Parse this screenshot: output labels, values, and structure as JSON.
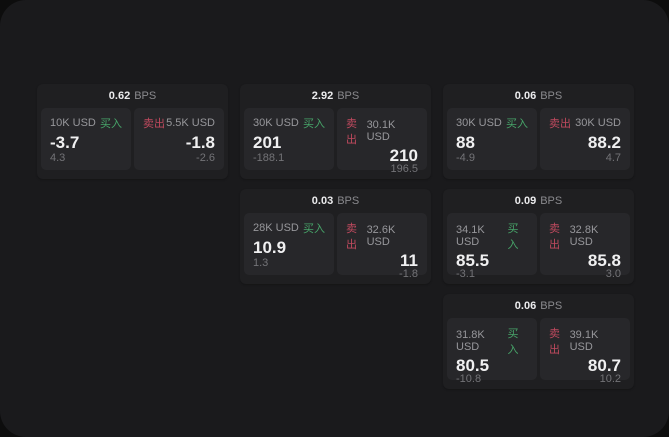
{
  "page": {
    "bps_unit": "BPS",
    "buy_label": "买入",
    "sell_label": "卖出",
    "colors": {
      "buy_green": "#47a469",
      "sell_red": "#c04a5e",
      "panel_bg": "#1a1a1c",
      "card_bg": "#1f1f21",
      "tile_bg": "#27272a",
      "outer_bg": "#0d0d0d"
    }
  },
  "cards": [
    {
      "row": 1,
      "col": 1,
      "bps": "0.62",
      "buy": {
        "amount": "10K USD",
        "value": "-3.7",
        "delta": "4.3"
      },
      "sell": {
        "amount": "5.5K USD",
        "value": "-1.8",
        "delta": "-2.6"
      }
    },
    {
      "row": 1,
      "col": 2,
      "bps": "2.92",
      "buy": {
        "amount": "30K USD",
        "value": "201",
        "delta": "-188.1"
      },
      "sell": {
        "amount": "30.1K USD",
        "value": "210",
        "delta": "196.5"
      }
    },
    {
      "row": 1,
      "col": 3,
      "bps": "0.06",
      "buy": {
        "amount": "30K USD",
        "value": "88",
        "delta": "-4.9"
      },
      "sell": {
        "amount": "30K USD",
        "value": "88.2",
        "delta": "4.7"
      }
    },
    {
      "row": 2,
      "col": 2,
      "bps": "0.03",
      "buy": {
        "amount": "28K USD",
        "value": "10.9",
        "delta": "1.3"
      },
      "sell": {
        "amount": "32.6K USD",
        "value": "11",
        "delta": "-1.8"
      }
    },
    {
      "row": 2,
      "col": 3,
      "bps": "0.09",
      "buy": {
        "amount": "34.1K USD",
        "value": "85.5",
        "delta": "-3.1"
      },
      "sell": {
        "amount": "32.8K USD",
        "value": "85.8",
        "delta": "3.0"
      }
    },
    {
      "row": 3,
      "col": 3,
      "bps": "0.06",
      "buy": {
        "amount": "31.8K USD",
        "value": "80.5",
        "delta": "-10.8"
      },
      "sell": {
        "amount": "39.1K USD",
        "value": "80.7",
        "delta": "10.2"
      }
    }
  ]
}
